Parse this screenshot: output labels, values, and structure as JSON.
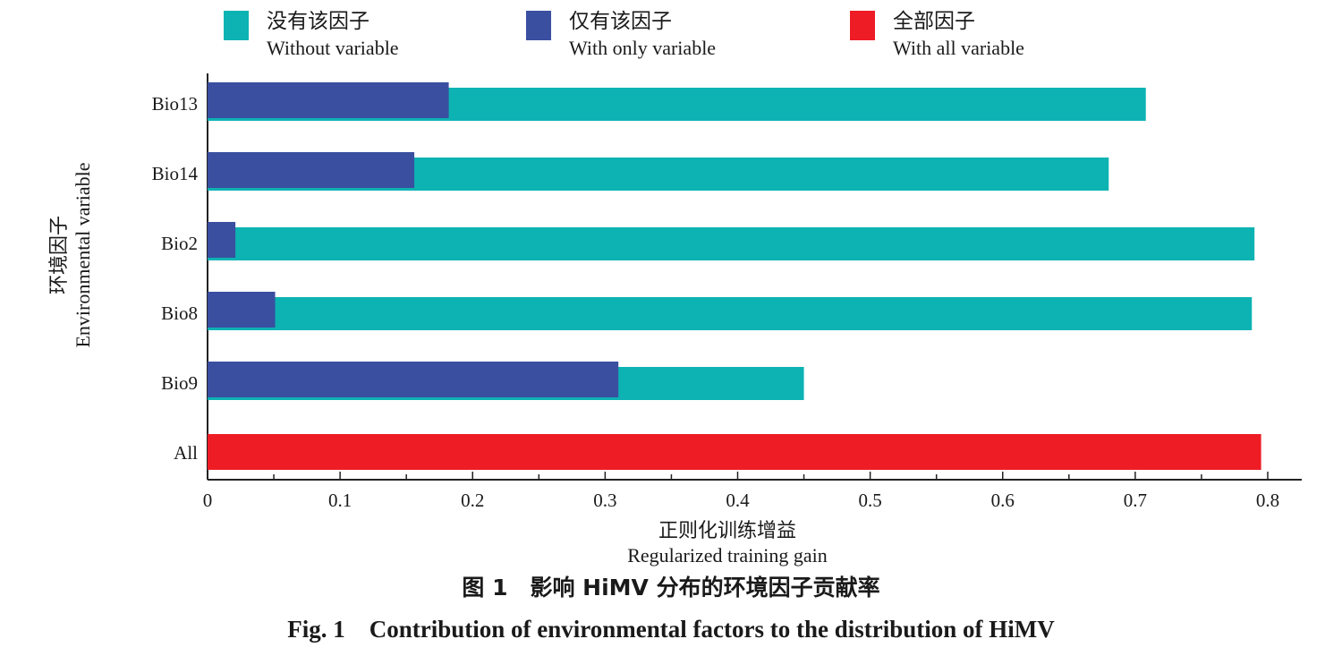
{
  "legend": [
    {
      "zh": "没有该因子",
      "en": "Without variable",
      "color": "#0db3b3"
    },
    {
      "zh": "仅有该因子",
      "en": "With only variable",
      "color": "#3a4fa0"
    },
    {
      "zh": "全部因子",
      "en": "With all variable",
      "color": "#ee1c25"
    }
  ],
  "axes": {
    "ylabel_zh": "环境因子",
    "ylabel_en": "Environmental variable",
    "xlabel_zh": "正则化训练增益",
    "xlabel_en": "Regularized training gain"
  },
  "caption": {
    "zh": "图 1　影响 HiMV 分布的环境因子贡献率",
    "en": "Fig. 1　Contribution of environmental factors to the distribution of HiMV"
  },
  "chart_data": {
    "type": "bar",
    "orientation": "horizontal",
    "categories": [
      "Bio13",
      "Bio14",
      "Bio2",
      "Bio8",
      "Bio9",
      "All"
    ],
    "series": [
      {
        "name": "Without variable",
        "values": [
          0.708,
          0.68,
          0.79,
          0.788,
          0.45,
          null
        ],
        "color": "#0db3b3"
      },
      {
        "name": "With only variable",
        "values": [
          0.182,
          0.156,
          0.021,
          0.051,
          0.31,
          null
        ],
        "color": "#3a4fa0"
      },
      {
        "name": "With all variable",
        "values": [
          null,
          null,
          null,
          null,
          null,
          0.795
        ],
        "color": "#ee1c25"
      }
    ],
    "xticks": [
      "0",
      "0.1",
      "0.2",
      "0.3",
      "0.4",
      "0.5",
      "0.6",
      "0.7",
      "0.8"
    ],
    "xlim": [
      0,
      0.82
    ],
    "xlabel": "Regularized training gain",
    "ylabel": "Environmental variable",
    "grid": false,
    "legend_position": "top"
  }
}
